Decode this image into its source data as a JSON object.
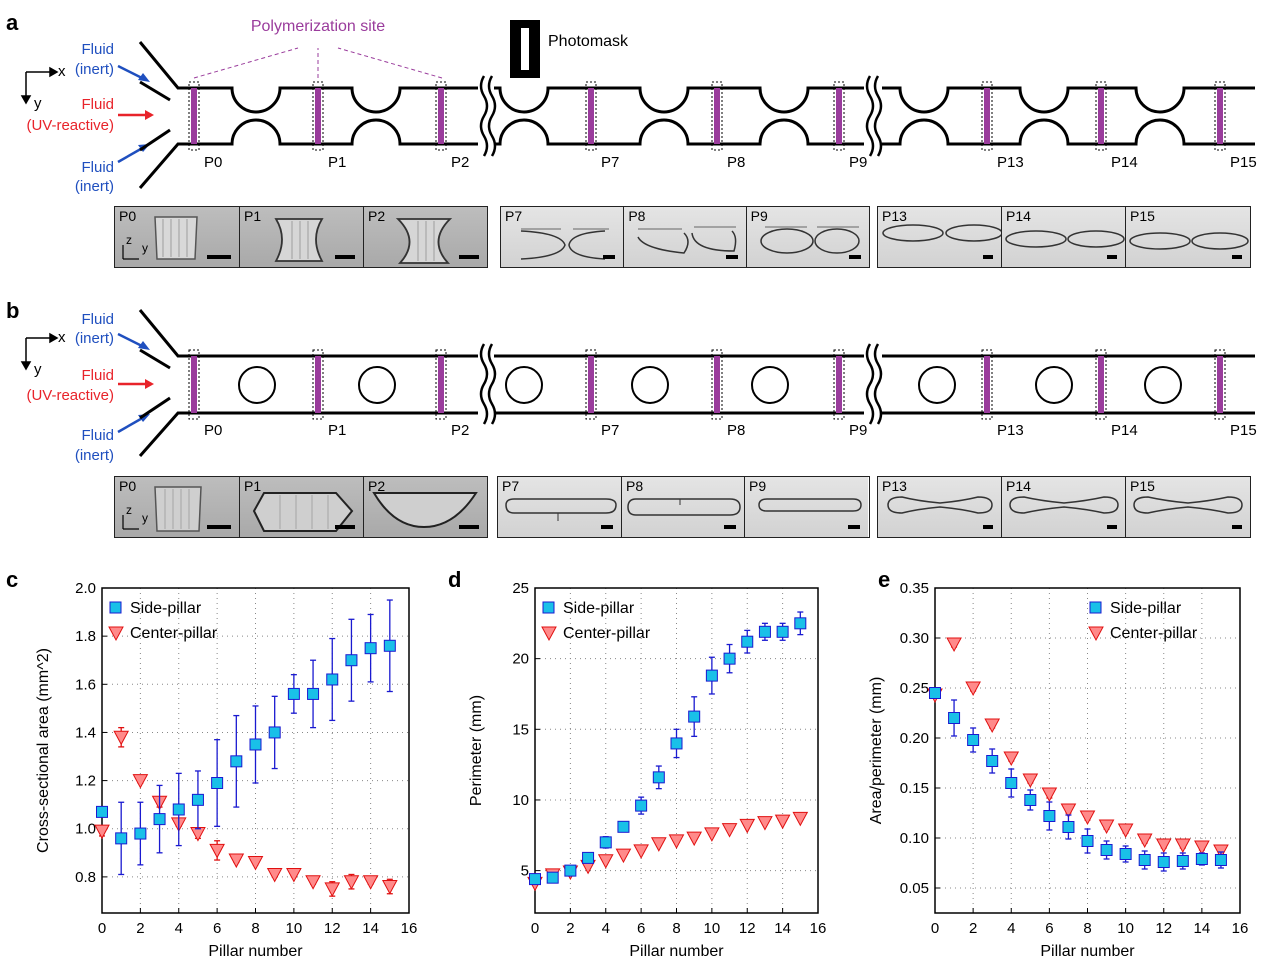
{
  "panels": {
    "a": {
      "letter": "a",
      "site_label": "Polymerization site",
      "photomask_label": "Photomask",
      "pillars": [
        "P0",
        "P1",
        "P2",
        "P7",
        "P8",
        "P9",
        "P13",
        "P14",
        "P15"
      ]
    },
    "b": {
      "letter": "b",
      "pillars": [
        "P0",
        "P1",
        "P2",
        "P7",
        "P8",
        "P9",
        "P13",
        "P14",
        "P15"
      ]
    },
    "c": {
      "letter": "c"
    },
    "d": {
      "letter": "d"
    },
    "e": {
      "letter": "e"
    }
  },
  "inlets": {
    "inert_top_1": "Fluid",
    "inert_top_2": "(inert)",
    "reactive_1": "Fluid",
    "reactive_2": "(UV-reactive)",
    "inert_bot_1": "Fluid",
    "inert_bot_2": "(inert)"
  },
  "axes_glyph": {
    "x": "x",
    "y": "y",
    "z": "z"
  },
  "colors": {
    "side": "#19c0e8",
    "center": "#ff8a8a",
    "error_side": "#1a1ad0",
    "error_center": "#e01010",
    "site": "#9a3c9c",
    "reactive": "#e8232a",
    "inert": "#1f4fbf"
  },
  "chart_data": [
    {
      "type": "scatter",
      "panel": "c",
      "xlabel": "Pillar number",
      "ylabel": "Cross-sectional area (mm^2)",
      "xlim": [
        0,
        16
      ],
      "ylim": [
        0.65,
        2.0
      ],
      "xticks": [
        0,
        2,
        4,
        6,
        8,
        10,
        12,
        14,
        16
      ],
      "yticks": [
        0.8,
        1.0,
        1.2,
        1.4,
        1.6,
        1.8,
        2.0
      ],
      "ytick_labels": [
        "0.8",
        "1.0",
        "1.2",
        "1.4",
        "1.6",
        "1.8",
        "2.0"
      ],
      "legend": "top-left",
      "grid": true,
      "series": [
        {
          "name": "Side-pillar",
          "marker": "square",
          "x": [
            0,
            1,
            2,
            3,
            4,
            5,
            6,
            7,
            8,
            9,
            10,
            11,
            12,
            13,
            14,
            15
          ],
          "y": [
            1.07,
            0.96,
            0.98,
            1.04,
            1.08,
            1.12,
            1.19,
            1.28,
            1.35,
            1.4,
            1.56,
            1.56,
            1.62,
            1.7,
            1.75,
            1.76
          ],
          "err": [
            0,
            0.15,
            0.13,
            0.14,
            0.15,
            0.12,
            0.18,
            0.19,
            0.16,
            0.15,
            0.08,
            0.14,
            0.17,
            0.17,
            0.14,
            0.19
          ]
        },
        {
          "name": "Center-pillar",
          "marker": "triangle-down",
          "x": [
            0,
            1,
            2,
            3,
            4,
            5,
            6,
            7,
            8,
            9,
            10,
            11,
            12,
            13,
            14,
            15
          ],
          "y": [
            0.99,
            1.38,
            1.2,
            1.11,
            1.02,
            0.98,
            0.91,
            0.87,
            0.86,
            0.81,
            0.81,
            0.78,
            0.75,
            0.78,
            0.78,
            0.76
          ],
          "err": [
            0.02,
            0.04,
            0.01,
            0.02,
            0.01,
            0.02,
            0.04,
            0.01,
            0.01,
            0.01,
            0.01,
            0.01,
            0.03,
            0.03,
            0.01,
            0.03
          ]
        }
      ]
    },
    {
      "type": "scatter",
      "panel": "d",
      "xlabel": "Pillar number",
      "ylabel": "Perimeter (mm)",
      "xlim": [
        0,
        16
      ],
      "ylim": [
        2,
        25
      ],
      "xticks": [
        0,
        2,
        4,
        6,
        8,
        10,
        12,
        14,
        16
      ],
      "yticks": [
        5,
        10,
        15,
        20,
        25
      ],
      "ytick_labels": [
        "5",
        "10",
        "15",
        "20",
        "25"
      ],
      "legend": "top-left",
      "grid": true,
      "series": [
        {
          "name": "Side-pillar",
          "marker": "square",
          "x": [
            0,
            1,
            2,
            3,
            4,
            5,
            6,
            7,
            8,
            9,
            10,
            11,
            12,
            13,
            14,
            15
          ],
          "y": [
            4.4,
            4.5,
            5.0,
            5.9,
            7.0,
            8.1,
            9.6,
            11.6,
            14.0,
            15.9,
            18.8,
            20.0,
            21.2,
            21.9,
            21.9,
            22.5
          ],
          "err": [
            0.3,
            0.2,
            0.2,
            0.3,
            0.4,
            0.3,
            0.6,
            0.8,
            1.0,
            1.4,
            1.3,
            1.0,
            0.8,
            0.6,
            0.6,
            0.8
          ]
        },
        {
          "name": "Center-pillar",
          "marker": "triangle-down",
          "x": [
            0,
            1,
            2,
            3,
            4,
            5,
            6,
            7,
            8,
            9,
            10,
            11,
            12,
            13,
            14,
            15
          ],
          "y": [
            4.1,
            4.7,
            4.9,
            5.3,
            5.7,
            6.1,
            6.4,
            6.9,
            7.1,
            7.3,
            7.6,
            7.9,
            8.2,
            8.4,
            8.5,
            8.7
          ],
          "err": [
            0.1,
            0.1,
            0.1,
            0.1,
            0.1,
            0.1,
            0.1,
            0.1,
            0.1,
            0.1,
            0.1,
            0.1,
            0.1,
            0.1,
            0.1,
            0.1
          ]
        }
      ]
    },
    {
      "type": "scatter",
      "panel": "e",
      "xlabel": "Pillar number",
      "ylabel": "Area/perimeter (mm)",
      "xlim": [
        0,
        16
      ],
      "ylim": [
        0.025,
        0.35
      ],
      "xticks": [
        0,
        2,
        4,
        6,
        8,
        10,
        12,
        14,
        16
      ],
      "yticks": [
        0.05,
        0.1,
        0.15,
        0.2,
        0.25,
        0.3,
        0.35
      ],
      "ytick_labels": [
        "0.05",
        "0.10",
        "0.15",
        "0.20",
        "0.25",
        "0.30",
        "0.35"
      ],
      "legend": "top-right",
      "grid": true,
      "series": [
        {
          "name": "Side-pillar",
          "marker": "square",
          "x": [
            0,
            1,
            2,
            3,
            4,
            5,
            6,
            7,
            8,
            9,
            10,
            11,
            12,
            13,
            14,
            15
          ],
          "y": [
            0.245,
            0.22,
            0.198,
            0.177,
            0.155,
            0.138,
            0.122,
            0.111,
            0.097,
            0.088,
            0.084,
            0.078,
            0.076,
            0.077,
            0.079,
            0.078
          ],
          "err": [
            0.005,
            0.018,
            0.012,
            0.012,
            0.014,
            0.01,
            0.014,
            0.012,
            0.012,
            0.009,
            0.008,
            0.009,
            0.009,
            0.008,
            0.006,
            0.008
          ]
        },
        {
          "name": "Center-pillar",
          "marker": "triangle-down",
          "x": [
            0,
            1,
            2,
            3,
            4,
            5,
            6,
            7,
            8,
            9,
            10,
            11,
            12,
            13,
            14,
            15
          ],
          "y": [
            0.243,
            0.294,
            0.25,
            0.213,
            0.18,
            0.158,
            0.144,
            0.128,
            0.121,
            0.112,
            0.108,
            0.098,
            0.093,
            0.093,
            0.091,
            0.087
          ],
          "err": [
            0.003,
            0.003,
            0.003,
            0.003,
            0.003,
            0.003,
            0.004,
            0.003,
            0.003,
            0.003,
            0.003,
            0.003,
            0.003,
            0.003,
            0.003,
            0.003
          ]
        }
      ]
    }
  ]
}
